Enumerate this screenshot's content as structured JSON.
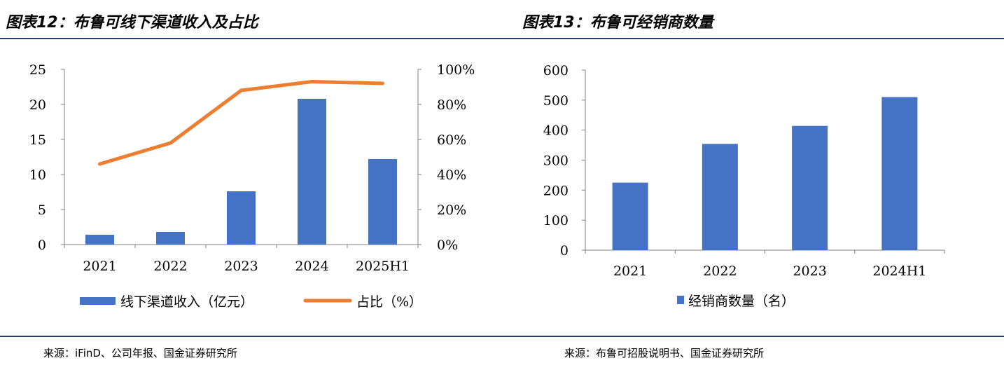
{
  "left": {
    "title": "图表12：布鲁可线下渠道收入及占比",
    "source": "来源：iFinD、公司年报、国金证券研究所"
  },
  "right": {
    "title": "图表13：布鲁可经销商数量",
    "source": "来源：布鲁可招股说明书、国金证券研究所"
  },
  "colors": {
    "bar": "#4472c4",
    "line": "#ed7d31",
    "rule": "#1f3f75"
  },
  "chart_data": [
    {
      "type": "bar",
      "categories": [
        "2021",
        "2022",
        "2023",
        "2024",
        "2025H1"
      ],
      "series": [
        {
          "name": "线下渠道收入（亿元）",
          "values": [
            1.4,
            1.8,
            7.6,
            20.8,
            12.2
          ],
          "axis": "left",
          "type": "bar"
        },
        {
          "name": "占比（%）",
          "values": [
            46,
            58,
            88,
            93,
            92
          ],
          "axis": "right",
          "type": "line"
        }
      ],
      "ylim": [
        0,
        25
      ],
      "yticks": [
        "0",
        "5",
        "10",
        "15",
        "20",
        "25"
      ],
      "y2lim": [
        0,
        100
      ],
      "y2ticks": [
        "0%",
        "20%",
        "40%",
        "60%",
        "80%",
        "100%"
      ],
      "legend": "bottom",
      "grid": false
    },
    {
      "type": "bar",
      "categories": [
        "2021",
        "2022",
        "2023",
        "2024H1"
      ],
      "series": [
        {
          "name": "经销商数量（名）",
          "values": [
            225,
            354,
            414,
            510
          ]
        }
      ],
      "ylim": [
        0,
        600
      ],
      "yticks": [
        "0",
        "100",
        "200",
        "300",
        "400",
        "500",
        "600"
      ],
      "legend": "bottom",
      "grid": false
    }
  ]
}
